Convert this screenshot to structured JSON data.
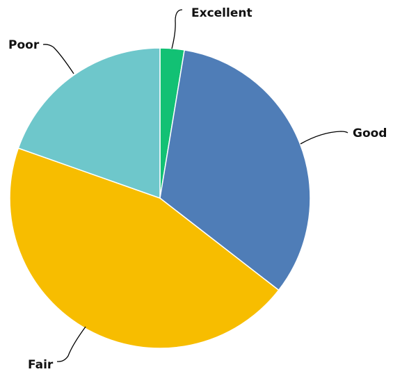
{
  "chart_data": {
    "type": "pie",
    "categories": [
      "Excellent",
      "Good",
      "Fair",
      "Poor"
    ],
    "values": [
      2.6,
      32.9,
      44.9,
      19.6
    ],
    "colors": {
      "Excellent": "#12c174",
      "Good": "#4f7db7",
      "Fair": "#f7bd00",
      "Poor": "#6ec7cb"
    },
    "start": "12 o'clock",
    "direction": "clockwise",
    "labels": "outside with leader lines"
  }
}
